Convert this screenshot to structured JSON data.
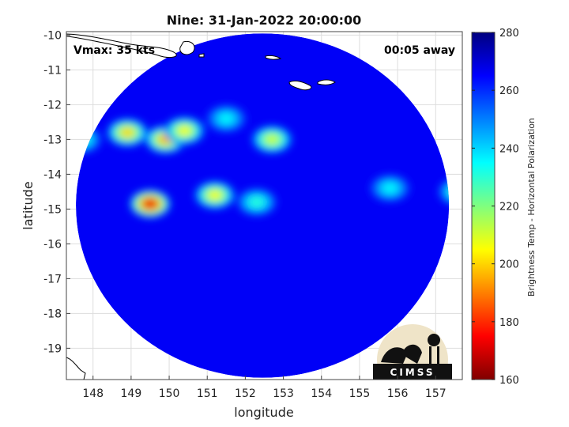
{
  "chart_data": {
    "type": "heatmap",
    "title": "Nine: 31-Jan-2022 20:00:00",
    "xlabel": "longitude",
    "ylabel": "latitude",
    "xlim": [
      147.3,
      157.7
    ],
    "ylim": [
      -19.9,
      -9.9
    ],
    "xticks": [
      "148",
      "149",
      "150",
      "151",
      "152",
      "153",
      "154",
      "155",
      "156",
      "157"
    ],
    "yticks": [
      "-10",
      "-11",
      "-12",
      "-13",
      "-14",
      "-15",
      "-16",
      "-17",
      "-18",
      "-19"
    ],
    "grid": true,
    "annotations": {
      "vmax": "Vmax: 35 kts",
      "away": "00:05 away"
    },
    "colorbar": {
      "label": "Brightness Temp - Horizontal Polarization",
      "range": [
        160,
        280
      ],
      "ticks": [
        "160",
        "180",
        "200",
        "220",
        "240",
        "260",
        "280"
      ]
    },
    "swath": {
      "center_lon": 152.45,
      "center_lat": -14.9,
      "radius_deg_lon": 4.9,
      "radius_deg_lat": 4.95
    },
    "background_temp": 266,
    "features": [
      {
        "lon": 149.5,
        "lat": -14.85,
        "temp": 172
      },
      {
        "lon": 149.9,
        "lat": -13.0,
        "temp": 195
      },
      {
        "lon": 150.4,
        "lat": -12.75,
        "temp": 205
      },
      {
        "lon": 148.9,
        "lat": -12.8,
        "temp": 200
      },
      {
        "lon": 152.7,
        "lat": -13.0,
        "temp": 210
      },
      {
        "lon": 151.2,
        "lat": -14.6,
        "temp": 205
      },
      {
        "lon": 152.3,
        "lat": -14.8,
        "temp": 230
      },
      {
        "lon": 155.8,
        "lat": -14.4,
        "temp": 235
      },
      {
        "lon": 157.6,
        "lat": -14.5,
        "temp": 225
      },
      {
        "lon": 147.7,
        "lat": -13.0,
        "temp": 230
      },
      {
        "lon": 151.5,
        "lat": -12.4,
        "temp": 235
      }
    ],
    "logo_text": "CIMSS"
  }
}
